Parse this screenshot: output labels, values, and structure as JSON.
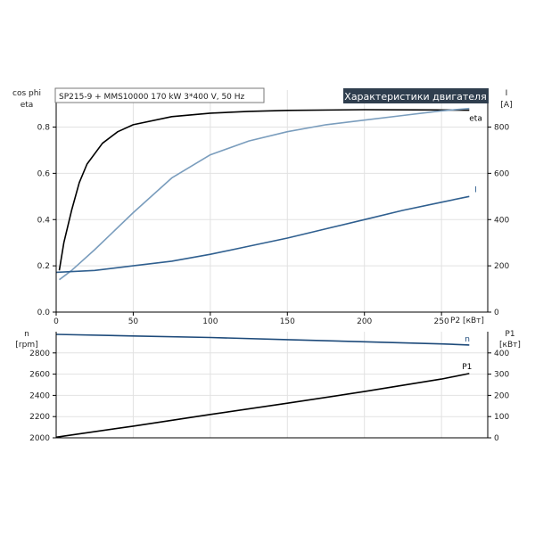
{
  "header": {
    "model": "SP215-9 + MMS10000   170 kW   3*400 V, 50 Hz",
    "title": "Характеристики двигателя"
  },
  "colors": {
    "eta": "#000000",
    "cos_phi": "#7a9dbd",
    "current": "#2f5f8f",
    "speed": "#1d4a7a",
    "p1": "#000000",
    "title_bg": "#2f3e4e",
    "grid": "#e2e2e2",
    "axis": "#000000"
  },
  "chart_data": [
    {
      "type": "line",
      "x": {
        "label": "P2 [кВт]",
        "ticks": [
          0,
          50,
          100,
          150,
          200,
          250
        ],
        "range": [
          0,
          280
        ]
      },
      "y_left": {
        "label_line1": "cos phi",
        "label_line2": "eta",
        "ticks": [
          "0.0",
          "0.2",
          "0.4",
          "0.6",
          "0.8"
        ],
        "range": [
          0,
          0.96
        ]
      },
      "y_right": {
        "label_line1": "I",
        "label_line2": "[A]",
        "ticks": [
          "0",
          "200",
          "400",
          "600",
          "800"
        ],
        "range": [
          0,
          960
        ]
      },
      "grid": true,
      "series": [
        {
          "name": "eta",
          "axis": "left",
          "color_key": "eta",
          "x": [
            2,
            5,
            10,
            15,
            20,
            30,
            40,
            50,
            75,
            100,
            125,
            150,
            200,
            250,
            268
          ],
          "y": [
            0.18,
            0.3,
            0.44,
            0.56,
            0.64,
            0.73,
            0.78,
            0.81,
            0.845,
            0.86,
            0.868,
            0.872,
            0.875,
            0.874,
            0.873
          ]
        },
        {
          "name": "cos phi",
          "axis": "left",
          "color_key": "cos_phi",
          "x": [
            2,
            10,
            25,
            50,
            75,
            100,
            125,
            150,
            175,
            200,
            225,
            250,
            268
          ],
          "y": [
            0.14,
            0.18,
            0.27,
            0.43,
            0.58,
            0.68,
            0.74,
            0.78,
            0.81,
            0.83,
            0.85,
            0.87,
            0.88
          ]
        },
        {
          "name": "I",
          "axis": "right",
          "color_key": "current",
          "x": [
            0,
            25,
            50,
            75,
            100,
            125,
            150,
            175,
            200,
            225,
            250,
            268
          ],
          "y": [
            172,
            180,
            200,
            220,
            250,
            285,
            320,
            360,
            400,
            440,
            475,
            500
          ]
        }
      ]
    },
    {
      "type": "line",
      "x": {
        "label": "P2 [кВт]",
        "range": [
          0,
          280
        ]
      },
      "y_left": {
        "label_line1": "n",
        "label_line2": "[rpm]",
        "ticks": [
          "2000",
          "2200",
          "2400",
          "2600",
          "2800"
        ],
        "range": [
          2000,
          3000
        ]
      },
      "y_right": {
        "label_line1": "P1",
        "label_line2": "[кВт]",
        "ticks": [
          "0",
          "100",
          "200",
          "300",
          "400"
        ],
        "range": [
          0,
          500
        ]
      },
      "grid": true,
      "series": [
        {
          "name": "n",
          "axis": "left",
          "color_key": "speed",
          "x": [
            0,
            50,
            100,
            150,
            200,
            250,
            268
          ],
          "y": [
            2975,
            2960,
            2945,
            2925,
            2905,
            2885,
            2875
          ]
        },
        {
          "name": "P1",
          "axis": "right",
          "color_key": "p1",
          "x": [
            0,
            50,
            100,
            150,
            200,
            250,
            268
          ],
          "y": [
            3,
            55,
            110,
            163,
            218,
            277,
            303
          ]
        }
      ]
    }
  ]
}
